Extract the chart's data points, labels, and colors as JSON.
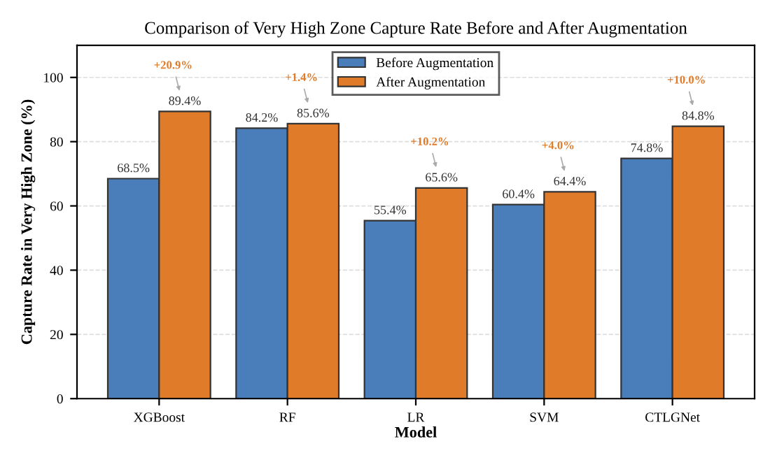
{
  "chart_data": {
    "type": "bar",
    "title": "Comparison of Very High Zone Capture Rate Before and After Augmentation",
    "xlabel": "Model",
    "ylabel": "Capture Rate in Very High Zone (%)",
    "categories": [
      "XGBoost",
      "RF",
      "LR",
      "SVM",
      "CTLGNet"
    ],
    "series": [
      {
        "name": "Before Augmentation",
        "color": "#4a7ebb",
        "values": [
          68.5,
          84.2,
          55.4,
          60.4,
          74.8
        ],
        "value_labels": [
          "68.5%",
          "84.2%",
          "55.4%",
          "60.4%",
          "74.8%"
        ]
      },
      {
        "name": "After Augmentation",
        "color": "#e07b2a",
        "values": [
          89.4,
          85.6,
          65.6,
          64.4,
          84.8
        ],
        "value_labels": [
          "89.4%",
          "85.6%",
          "65.6%",
          "64.4%",
          "84.8%"
        ]
      }
    ],
    "annotations": [
      "+20.9%",
      "+1.4%",
      "+10.2%",
      "+4.0%",
      "+10.0%"
    ],
    "ylim": [
      0,
      110
    ],
    "yticks": [
      0,
      20,
      40,
      60,
      80,
      100
    ],
    "grid": "y",
    "legend": "top"
  }
}
